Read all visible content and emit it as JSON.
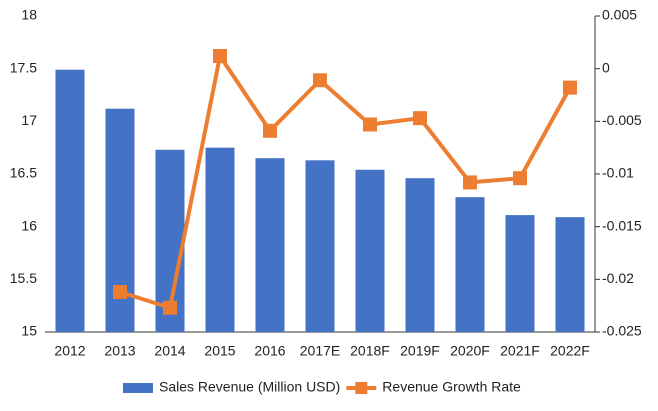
{
  "chart_data": {
    "type": "bar",
    "categories": [
      "2012",
      "2013",
      "2014",
      "2015",
      "2016",
      "2017E",
      "2018F",
      "2019F",
      "2020F",
      "2021F",
      "2022F"
    ],
    "series": [
      {
        "name": "Sales Revenue (Million USD)",
        "type": "bar",
        "color": "#4472c4",
        "values": [
          17.49,
          17.12,
          16.73,
          16.75,
          16.65,
          16.63,
          16.54,
          16.46,
          16.28,
          16.11,
          16.09
        ]
      },
      {
        "name": "Revenue Growth Rate",
        "type": "line",
        "axis": "y2",
        "color": "#ed7d31",
        "values": [
          null,
          -0.0212,
          -0.0227,
          0.0012,
          -0.0059,
          -0.0011,
          -0.0053,
          -0.0047,
          -0.0108,
          -0.0104,
          -0.0018
        ]
      }
    ],
    "ylim": [
      15,
      18
    ],
    "yticks": [
      15,
      15.5,
      16,
      16.5,
      17,
      17.5,
      18
    ],
    "y2lim": [
      -0.025,
      0.005
    ],
    "y2ticks": [
      -0.025,
      -0.02,
      -0.015,
      -0.01,
      -0.005,
      0,
      0.005
    ],
    "grid": false,
    "legend": "bottom"
  }
}
